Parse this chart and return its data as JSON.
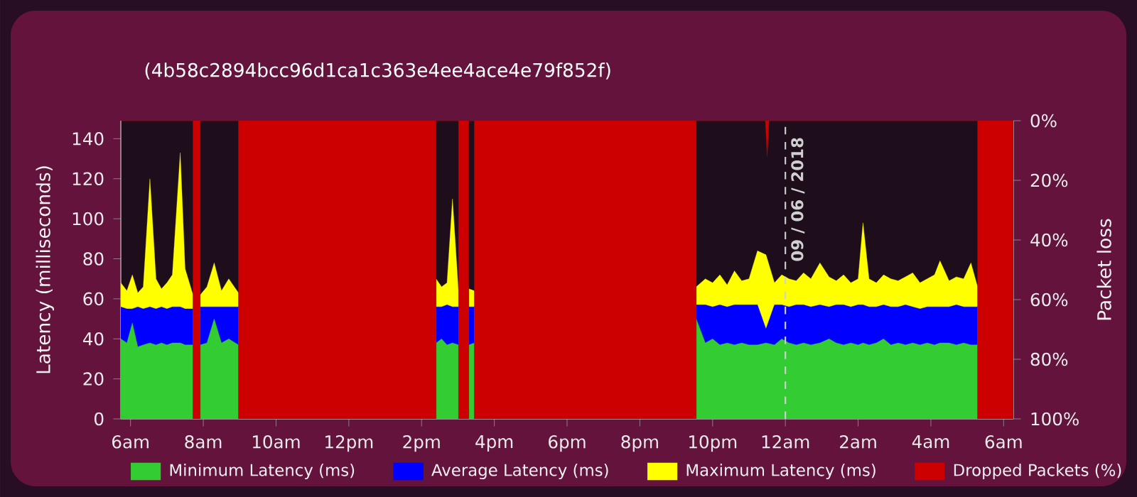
{
  "chart_data": {
    "type": "area",
    "subtitle": "(4b58c2894bcc96d1ca1c363e4ee4ace4e79f852f)",
    "ylabel": "Latency (milliseconds)",
    "y2label": "Packet loss",
    "xlim": [
      "2018-06-08T05:44",
      "2018-06-09T06:16"
    ],
    "xticks": [
      {
        "value": "2018-06-08T06:00",
        "label": "6am"
      },
      {
        "value": "2018-06-08T08:00",
        "label": "8am"
      },
      {
        "value": "2018-06-08T10:00",
        "label": "10am"
      },
      {
        "value": "2018-06-08T12:00",
        "label": "12pm"
      },
      {
        "value": "2018-06-08T14:00",
        "label": "2pm"
      },
      {
        "value": "2018-06-08T16:00",
        "label": "4pm"
      },
      {
        "value": "2018-06-08T18:00",
        "label": "6pm"
      },
      {
        "value": "2018-06-08T20:00",
        "label": "8pm"
      },
      {
        "value": "2018-06-08T22:00",
        "label": "10pm"
      },
      {
        "value": "2018-06-09T00:00",
        "label": "12am"
      },
      {
        "value": "2018-06-09T02:00",
        "label": "2am"
      },
      {
        "value": "2018-06-09T04:00",
        "label": "4am"
      },
      {
        "value": "2018-06-09T06:00",
        "label": "6am"
      }
    ],
    "ylim": [
      0,
      149
    ],
    "yticks": [
      0,
      20,
      40,
      60,
      80,
      100,
      120,
      140
    ],
    "y2lim": [
      100,
      0
    ],
    "y2ticks": [
      {
        "value": 0,
        "label": "0%"
      },
      {
        "value": 20,
        "label": "20%"
      },
      {
        "value": 40,
        "label": "40%"
      },
      {
        "value": 60,
        "label": "60%"
      },
      {
        "value": 80,
        "label": "80%"
      },
      {
        "value": 100,
        "label": "100%"
      }
    ],
    "x": [
      "2018-06-08T05:44",
      "2018-06-08T05:54",
      "2018-06-08T06:03",
      "2018-06-08T06:12",
      "2018-06-08T06:21",
      "2018-06-08T06:32",
      "2018-06-08T06:42",
      "2018-06-08T06:51",
      "2018-06-08T07:00",
      "2018-06-08T07:09",
      "2018-06-08T07:22",
      "2018-06-08T07:30",
      "2018-06-08T07:43",
      "2018-06-08T07:48",
      "2018-06-08T07:55",
      "2018-06-08T08:06",
      "2018-06-08T08:18",
      "2018-06-08T08:30",
      "2018-06-08T08:42",
      "2018-06-08T08:58",
      "2018-06-08T09:30",
      "2018-06-08T14:24",
      "2018-06-08T14:33",
      "2018-06-08T14:42",
      "2018-06-08T14:51",
      "2018-06-08T15:01",
      "2018-06-08T15:09",
      "2018-06-08T15:18",
      "2018-06-08T15:27",
      "2018-06-08T18:00",
      "2018-06-08T21:33",
      "2018-06-08T21:48",
      "2018-06-08T22:00",
      "2018-06-08T22:12",
      "2018-06-08T22:24",
      "2018-06-08T22:36",
      "2018-06-08T22:48",
      "2018-06-08T23:00",
      "2018-06-08T23:14",
      "2018-06-08T23:28",
      "2018-06-08T23:42",
      "2018-06-08T23:54",
      "2018-06-09T00:06",
      "2018-06-09T00:18",
      "2018-06-09T00:30",
      "2018-06-09T00:42",
      "2018-06-09T00:57",
      "2018-06-09T01:12",
      "2018-06-09T01:24",
      "2018-06-09T01:36",
      "2018-06-09T01:48",
      "2018-06-09T02:00",
      "2018-06-09T02:08",
      "2018-06-09T02:18",
      "2018-06-09T02:30",
      "2018-06-09T02:42",
      "2018-06-09T02:54",
      "2018-06-09T03:06",
      "2018-06-09T03:18",
      "2018-06-09T03:30",
      "2018-06-09T03:42",
      "2018-06-09T03:54",
      "2018-06-09T04:06",
      "2018-06-09T04:15",
      "2018-06-09T04:30",
      "2018-06-09T04:42",
      "2018-06-09T04:54",
      "2018-06-09T05:06",
      "2018-06-09T05:17"
    ],
    "series": [
      {
        "name": "Minimum Latency (ms)",
        "color": "#33cc33",
        "values": [
          40,
          38,
          48,
          36,
          37,
          38,
          37,
          38,
          37,
          38,
          38,
          37,
          37,
          null,
          37,
          38,
          50,
          38,
          40,
          37,
          null,
          38,
          40,
          37,
          38,
          37,
          null,
          37,
          38,
          null,
          50,
          38,
          40,
          37,
          38,
          37,
          38,
          37,
          37,
          38,
          37,
          40,
          38,
          37,
          38,
          37,
          38,
          40,
          38,
          37,
          38,
          37,
          38,
          37,
          38,
          40,
          37,
          38,
          37,
          38,
          37,
          38,
          37,
          38,
          38,
          37,
          38,
          37,
          37
        ]
      },
      {
        "name": "Average Latency (ms)",
        "color": "#0000ff",
        "values": [
          56,
          55,
          55,
          56,
          55,
          56,
          55,
          56,
          55,
          56,
          56,
          55,
          55,
          null,
          56,
          56,
          56,
          56,
          56,
          56,
          null,
          56,
          56,
          57,
          56,
          56,
          null,
          56,
          56,
          null,
          57,
          57,
          56,
          57,
          56,
          57,
          57,
          57,
          57,
          45,
          57,
          57,
          56,
          57,
          57,
          56,
          57,
          56,
          57,
          57,
          56,
          57,
          57,
          56,
          56,
          57,
          56,
          56,
          57,
          56,
          55,
          56,
          56,
          56,
          56,
          57,
          56,
          56,
          56
        ]
      },
      {
        "name": "Maximum Latency (ms)",
        "color": "#ffff00",
        "values": [
          68,
          64,
          72,
          63,
          66,
          120,
          70,
          65,
          68,
          72,
          133,
          75,
          62,
          null,
          62,
          66,
          78,
          64,
          70,
          63,
          null,
          70,
          66,
          68,
          110,
          63,
          null,
          65,
          64,
          null,
          66,
          70,
          68,
          72,
          67,
          74,
          69,
          70,
          84,
          82,
          68,
          72,
          70,
          69,
          73,
          70,
          78,
          71,
          69,
          72,
          68,
          70,
          98,
          70,
          68,
          72,
          70,
          69,
          71,
          73,
          68,
          70,
          72,
          79,
          69,
          71,
          70,
          78,
          66
        ]
      },
      {
        "name": "Dropped Packets (%)",
        "color": "#cc0000",
        "type": "area",
        "axis": "y2",
        "x": [
          "2018-06-08T05:44",
          "2018-06-08T07:43",
          "2018-06-08T07:43",
          "2018-06-08T07:55",
          "2018-06-08T07:55",
          "2018-06-08T08:58",
          "2018-06-08T08:58",
          "2018-06-08T14:24",
          "2018-06-08T14:24",
          "2018-06-08T15:01",
          "2018-06-08T15:01",
          "2018-06-08T15:18",
          "2018-06-08T15:18",
          "2018-06-08T15:27",
          "2018-06-08T15:27",
          "2018-06-08T21:33",
          "2018-06-08T21:33",
          "2018-06-08T23:27",
          "2018-06-08T23:30",
          "2018-06-08T23:33",
          "2018-06-09T05:17",
          "2018-06-09T05:17",
          "2018-06-09T06:16"
        ],
        "values": [
          0,
          0,
          100,
          100,
          0,
          0,
          100,
          100,
          0,
          0,
          100,
          100,
          0,
          0,
          100,
          100,
          0,
          0,
          12,
          0,
          0,
          100,
          100
        ]
      }
    ],
    "ref_lines": [
      {
        "axis": "x",
        "value": "2018-06-09T00:00",
        "label": "09 / 06 / 2018",
        "color": "#d0d0d0",
        "line_style": "dashed"
      }
    ],
    "legend": "bottom"
  }
}
